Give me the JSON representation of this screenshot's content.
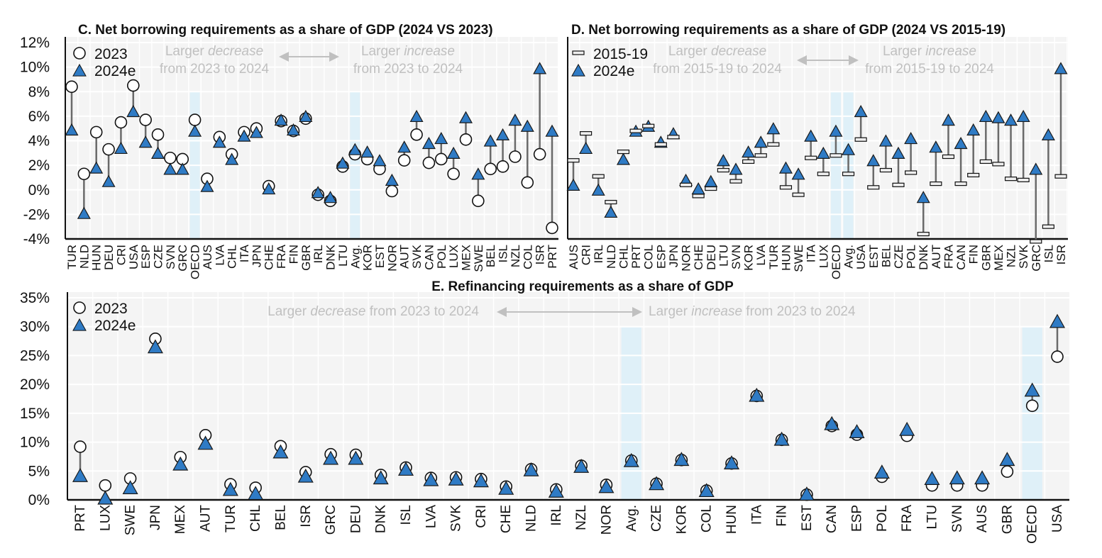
{
  "chart_data": [
    {
      "id": "C",
      "type": "dot-range",
      "title": "C. Net borrowing requirements as a share of GDP (2024 VS 2023)",
      "xlabel": "",
      "ylabel": "",
      "ylim": [
        -4,
        12
      ],
      "yticks": [
        "12%",
        "10%",
        "8%",
        "6%",
        "4%",
        "2%",
        "0%",
        "-2%",
        "-4%"
      ],
      "ytick_values": [
        12,
        10,
        8,
        6,
        4,
        2,
        0,
        -2,
        -4
      ],
      "grid": true,
      "legend": {
        "position": "top-left",
        "entries": [
          {
            "label": "2023",
            "marker": "circle"
          },
          {
            "label": "2024e",
            "marker": "triangle"
          }
        ]
      },
      "annotations": {
        "left_line1_plain": "Larger ",
        "left_line1_italic": "decrease",
        "left_line2": "from 2023 to 2024",
        "right_line1_plain": "Larger ",
        "right_line1_italic": "increase",
        "right_line2": "from 2023 to 2024"
      },
      "highlighted": [
        "OECD",
        "Avg."
      ],
      "categories": [
        "TUR",
        "NLD",
        "HUN",
        "DEU",
        "CRI",
        "USA",
        "ESP",
        "CZE",
        "SVN",
        "GRC",
        "OECD",
        "AUS",
        "LVA",
        "CHL",
        "ITA",
        "JPN",
        "CHE",
        "FRA",
        "FIN",
        "GBR",
        "IRL",
        "DNK",
        "LTU",
        "Avg.",
        "KOR",
        "EST",
        "NOR",
        "AUT",
        "SVK",
        "CAN",
        "POL",
        "LUX",
        "MEX",
        "SWE",
        "BEL",
        "ISL",
        "NZL",
        "COL",
        "ISR",
        "PRT"
      ],
      "series": [
        {
          "name": "2023",
          "marker": "circle",
          "values": [
            8.4,
            1.3,
            4.7,
            3.3,
            5.5,
            8.5,
            5.7,
            4.5,
            2.6,
            2.5,
            5.7,
            0.9,
            4.3,
            2.9,
            4.7,
            5.0,
            0.3,
            5.6,
            4.8,
            5.8,
            -0.4,
            -0.9,
            1.9,
            2.9,
            2.5,
            1.7,
            -0.1,
            2.4,
            4.5,
            2.2,
            2.5,
            1.3,
            4.1,
            -0.9,
            1.7,
            1.9,
            2.7,
            0.6,
            2.9,
            -3.1
          ]
        },
        {
          "name": "2024e",
          "marker": "triangle",
          "values": [
            4.8,
            -2.0,
            1.7,
            0.6,
            3.3,
            6.3,
            3.8,
            2.9,
            1.6,
            1.6,
            4.7,
            0.2,
            3.8,
            2.4,
            4.3,
            4.6,
            0.0,
            5.6,
            4.8,
            5.9,
            -0.3,
            -0.7,
            2.1,
            3.2,
            3.0,
            2.3,
            0.7,
            3.4,
            5.9,
            3.7,
            4.1,
            2.9,
            5.8,
            1.2,
            3.9,
            4.4,
            5.6,
            5.1,
            9.8,
            4.7
          ]
        }
      ]
    },
    {
      "id": "D",
      "type": "dot-range",
      "title": "D. Net borrowing requirements as a share of GDP (2024 VS 2015-19)",
      "xlabel": "",
      "ylabel": "",
      "ylim": [
        -4,
        12
      ],
      "grid": true,
      "legend": {
        "position": "top-left",
        "entries": [
          {
            "label": "2015-19",
            "marker": "bar"
          },
          {
            "label": "2024e",
            "marker": "triangle"
          }
        ]
      },
      "annotations": {
        "left_line1_plain": "Larger ",
        "left_line1_italic": "decrease",
        "left_line2": "from 2015-19 to 2024",
        "right_line1_plain": "Larger ",
        "right_line1_italic": "increase",
        "right_line2": "from 2015-19 to 2024"
      },
      "highlighted": [
        "OECD",
        "Avg."
      ],
      "categories": [
        "AUS",
        "CRI",
        "IRL",
        "NLD",
        "CHL",
        "PRT",
        "COL",
        "ESP",
        "JPN",
        "NOR",
        "CHE",
        "DEU",
        "LTU",
        "SVN",
        "KOR",
        "LVA",
        "TUR",
        "HUN",
        "SWE",
        "ITA",
        "LUX",
        "OECD",
        "Avg.",
        "USA",
        "EST",
        "BEL",
        "CZE",
        "POL",
        "DNK",
        "AUT",
        "FRA",
        "CAN",
        "FIN",
        "GBR",
        "MEX",
        "NZL",
        "SVK",
        "GRC",
        "ISL",
        "ISR"
      ],
      "series": [
        {
          "name": "2015-19",
          "marker": "bar",
          "values": [
            2.4,
            4.6,
            1.1,
            -1.0,
            3.1,
            4.8,
            5.2,
            3.7,
            4.3,
            0.4,
            -0.5,
            0.1,
            1.6,
            0.7,
            2.3,
            2.8,
            3.7,
            0.2,
            -0.4,
            2.6,
            1.3,
            2.8,
            1.3,
            4.1,
            0.2,
            1.6,
            0.4,
            1.4,
            -3.6,
            0.5,
            2.7,
            0.5,
            1.2,
            2.3,
            2.1,
            0.9,
            0.8,
            -4.2,
            -3.0,
            1.1
          ]
        },
        {
          "name": "2024e",
          "marker": "triangle",
          "values": [
            0.3,
            3.3,
            -0.1,
            -1.9,
            2.4,
            4.7,
            5.1,
            3.8,
            4.5,
            0.7,
            0.0,
            0.6,
            2.3,
            1.6,
            3.0,
            3.8,
            4.9,
            1.7,
            1.2,
            4.3,
            2.9,
            4.7,
            3.2,
            6.3,
            2.3,
            3.9,
            2.9,
            4.1,
            -0.7,
            3.4,
            5.6,
            3.7,
            4.8,
            5.9,
            5.8,
            5.6,
            5.9,
            1.6,
            4.4,
            9.8
          ]
        }
      ]
    },
    {
      "id": "E",
      "type": "dot-range",
      "title": "E. Refinancing requirements as a share of GDP",
      "xlabel": "",
      "ylabel": "",
      "ylim": [
        0,
        35
      ],
      "yticks": [
        "35%",
        "30%",
        "25%",
        "20%",
        "15%",
        "10%",
        "5%",
        "0%"
      ],
      "ytick_values": [
        35,
        30,
        25,
        20,
        15,
        10,
        5,
        0
      ],
      "grid": true,
      "legend": {
        "position": "top-left",
        "entries": [
          {
            "label": "2023",
            "marker": "circle"
          },
          {
            "label": "2024e",
            "marker": "triangle"
          }
        ]
      },
      "annotations": {
        "left_plain": "Larger ",
        "left_italic": "decrease",
        "left_rest": " from 2023 to 2024",
        "right_plain": "Larger ",
        "right_italic": "increase",
        "right_rest": " from 2023 to 2024"
      },
      "highlighted": [
        "Avg.",
        "OECD"
      ],
      "categories": [
        "PRT",
        "LUX",
        "SWE",
        "JPN",
        "MEX",
        "AUT",
        "TUR",
        "CHL",
        "BEL",
        "ISR",
        "GRC",
        "DEU",
        "DNK",
        "ISL",
        "LVA",
        "SVK",
        "CRI",
        "CHE",
        "NLD",
        "IRL",
        "NZL",
        "NOR",
        "Avg.",
        "CZE",
        "KOR",
        "COL",
        "HUN",
        "ITA",
        "FIN",
        "EST",
        "CAN",
        "ESP",
        "POL",
        "FRA",
        "LTU",
        "SVN",
        "AUS",
        "GBR",
        "OECD",
        "USA"
      ],
      "series": [
        {
          "name": "2023",
          "marker": "circle",
          "values": [
            9.2,
            2.5,
            3.7,
            27.9,
            7.4,
            11.2,
            2.7,
            2.1,
            9.3,
            4.8,
            7.9,
            7.8,
            4.3,
            5.6,
            3.8,
            3.9,
            3.6,
            2.3,
            5.3,
            1.8,
            5.9,
            2.6,
            6.8,
            2.8,
            6.9,
            1.6,
            6.3,
            18.0,
            10.4,
            0.9,
            12.8,
            11.3,
            4.0,
            11.1,
            2.5,
            2.5,
            2.5,
            4.9,
            16.3,
            24.8
          ]
        },
        {
          "name": "2024e",
          "marker": "triangle",
          "values": [
            4.0,
            0.1,
            1.9,
            26.3,
            6.0,
            9.6,
            1.6,
            0.9,
            8.1,
            3.9,
            7.0,
            7.0,
            3.6,
            5.1,
            3.3,
            3.4,
            3.1,
            1.8,
            5.0,
            1.3,
            5.6,
            2.1,
            6.6,
            2.6,
            6.8,
            1.4,
            6.2,
            17.9,
            10.3,
            0.8,
            13.0,
            11.6,
            4.6,
            12.0,
            3.5,
            3.6,
            3.6,
            6.8,
            18.8,
            30.7
          ]
        }
      ]
    }
  ],
  "colors": {
    "triangle_fill": "#2f7bc5",
    "triangle_stroke": "#1a1a1a",
    "circle_fill": "#ffffff",
    "connector": "#6a6a6a",
    "highlight": "#dff0f8",
    "plot_bg": "#f4f4f4",
    "annotation": "#c0c0c0"
  }
}
